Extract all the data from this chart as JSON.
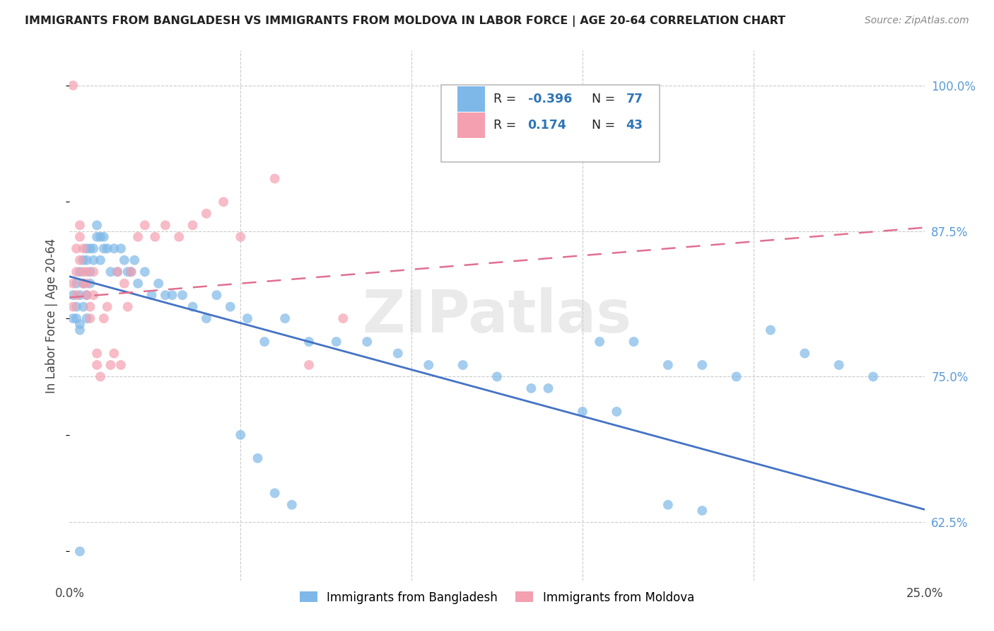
{
  "title": "IMMIGRANTS FROM BANGLADESH VS IMMIGRANTS FROM MOLDOVA IN LABOR FORCE | AGE 20-64 CORRELATION CHART",
  "source": "Source: ZipAtlas.com",
  "ylabel": "In Labor Force | Age 20-64",
  "xlim": [
    0.0,
    0.25
  ],
  "ylim": [
    0.575,
    1.03
  ],
  "xtick_vals": [
    0.0,
    0.05,
    0.1,
    0.15,
    0.2,
    0.25
  ],
  "xticklabels": [
    "0.0%",
    "",
    "",
    "",
    "",
    "25.0%"
  ],
  "ytick_vals": [
    0.625,
    0.75,
    0.875,
    1.0
  ],
  "yticklabels": [
    "62.5%",
    "75.0%",
    "87.5%",
    "100.0%"
  ],
  "color_bangladesh": "#7EB8E8",
  "color_moldova": "#F4A0B0",
  "color_blue_line": "#4472C4",
  "color_pink_line": "#E07090",
  "watermark": "ZIPatlas",
  "bangladesh_x": [
    0.001,
    0.001,
    0.002,
    0.002,
    0.002,
    0.003,
    0.003,
    0.003,
    0.003,
    0.004,
    0.004,
    0.004,
    0.005,
    0.005,
    0.005,
    0.005,
    0.006,
    0.006,
    0.006,
    0.007,
    0.007,
    0.008,
    0.008,
    0.009,
    0.009,
    0.01,
    0.01,
    0.011,
    0.012,
    0.013,
    0.014,
    0.015,
    0.016,
    0.017,
    0.018,
    0.019,
    0.02,
    0.022,
    0.024,
    0.026,
    0.028,
    0.03,
    0.033,
    0.036,
    0.04,
    0.043,
    0.047,
    0.052,
    0.057,
    0.063,
    0.07,
    0.078,
    0.087,
    0.096,
    0.105,
    0.115,
    0.125,
    0.135,
    0.155,
    0.165,
    0.175,
    0.185,
    0.195,
    0.205,
    0.215,
    0.225,
    0.235,
    0.175,
    0.185,
    0.14,
    0.15,
    0.16,
    0.05,
    0.055,
    0.06,
    0.065,
    0.003
  ],
  "bangladesh_y": [
    0.8,
    0.82,
    0.81,
    0.83,
    0.8,
    0.79,
    0.82,
    0.84,
    0.795,
    0.81,
    0.85,
    0.83,
    0.8,
    0.82,
    0.85,
    0.86,
    0.84,
    0.86,
    0.83,
    0.86,
    0.85,
    0.87,
    0.88,
    0.85,
    0.87,
    0.86,
    0.87,
    0.86,
    0.84,
    0.86,
    0.84,
    0.86,
    0.85,
    0.84,
    0.84,
    0.85,
    0.83,
    0.84,
    0.82,
    0.83,
    0.82,
    0.82,
    0.82,
    0.81,
    0.8,
    0.82,
    0.81,
    0.8,
    0.78,
    0.8,
    0.78,
    0.78,
    0.78,
    0.77,
    0.76,
    0.76,
    0.75,
    0.74,
    0.78,
    0.78,
    0.76,
    0.76,
    0.75,
    0.79,
    0.77,
    0.76,
    0.75,
    0.64,
    0.635,
    0.74,
    0.72,
    0.72,
    0.7,
    0.68,
    0.65,
    0.64,
    0.6
  ],
  "moldova_x": [
    0.001,
    0.001,
    0.002,
    0.002,
    0.002,
    0.003,
    0.003,
    0.003,
    0.004,
    0.004,
    0.004,
    0.005,
    0.005,
    0.005,
    0.006,
    0.006,
    0.007,
    0.007,
    0.008,
    0.008,
    0.009,
    0.01,
    0.011,
    0.012,
    0.013,
    0.014,
    0.015,
    0.016,
    0.017,
    0.018,
    0.02,
    0.022,
    0.025,
    0.028,
    0.032,
    0.036,
    0.04,
    0.045,
    0.05,
    0.06,
    0.07,
    0.08,
    0.001
  ],
  "moldova_y": [
    0.81,
    0.83,
    0.84,
    0.82,
    0.86,
    0.87,
    0.88,
    0.85,
    0.83,
    0.84,
    0.86,
    0.82,
    0.83,
    0.84,
    0.8,
    0.81,
    0.82,
    0.84,
    0.77,
    0.76,
    0.75,
    0.8,
    0.81,
    0.76,
    0.77,
    0.84,
    0.76,
    0.83,
    0.81,
    0.84,
    0.87,
    0.88,
    0.87,
    0.88,
    0.87,
    0.88,
    0.89,
    0.9,
    0.87,
    0.92,
    0.76,
    0.8,
    1.0
  ],
  "blue_line_x": [
    0.0,
    0.25
  ],
  "blue_line_y": [
    0.836,
    0.636
  ],
  "pink_line_x": [
    0.0,
    0.25
  ],
  "pink_line_y": [
    0.818,
    0.878
  ]
}
